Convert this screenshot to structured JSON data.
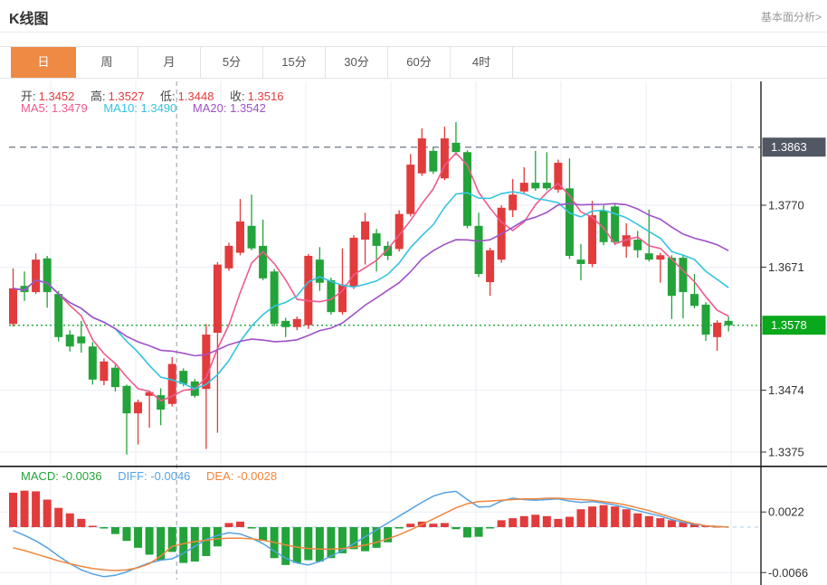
{
  "header": {
    "title": "K线图",
    "link": "基本面分析>"
  },
  "tabs": {
    "items": [
      "日",
      "周",
      "月",
      "5分",
      "15分",
      "30分",
      "60分",
      "4时"
    ],
    "active": "日"
  },
  "ohlc_legend": {
    "open_label": "开:",
    "open_value": "1.3452",
    "high_label": "高:",
    "high_value": "1.3527",
    "low_label": "低:",
    "low_value": "1.3448",
    "close_label": "收:",
    "close_value": "1.3516"
  },
  "ma_legend": {
    "ma5": "MA5: 1.3479",
    "ma10": "MA10: 1.3490",
    "ma20": "MA20: 1.3542"
  },
  "macd_legend": {
    "macd": "MACD: -0.0036",
    "diff": "DIFF: -0.0046",
    "dea": "DEA: -0.0028"
  },
  "price_axis": {
    "tick_labels": [
      "1.3770",
      "1.3671",
      "1.3474",
      "1.3375"
    ],
    "high_badge": "1.3863",
    "current_badge": "1.3578"
  },
  "macd_axis": {
    "tick_labels": [
      "0.0022",
      "-0.0066"
    ]
  },
  "colors": {
    "up": "#e23b3c",
    "down": "#23a33a",
    "ma5": "#ef5a8d",
    "ma10": "#35c3e0",
    "ma20": "#9f52c8",
    "diff_line": "#55a2e3",
    "dea_line": "#f0863c",
    "active_tab": "#ee8a44",
    "high_badge_bg": "#515863",
    "current_badge_bg": "#0aa81d",
    "current_line": "#2fae46",
    "dashed_line": "#858c96",
    "grid": "#e9eef5",
    "axis_line": "#1f1f1f",
    "separator": "#141414",
    "macd_zero": "#a8d2f0",
    "tick_text": "#333333",
    "value_red": "#e23b3c"
  },
  "chart_data": {
    "type": "candlestick",
    "title": "K线图",
    "period": "日",
    "selected_index": 14,
    "selected_ohlc": {
      "open": 1.3452,
      "high": 1.3527,
      "low": 1.3448,
      "close": 1.3516
    },
    "ma_values": {
      "ma5": 1.3479,
      "ma10": 1.349,
      "ma20": 1.3542
    },
    "macd_values": {
      "macd": -0.0036,
      "diff": -0.0046,
      "dea": -0.0028
    },
    "price_ticks": [
      1.377,
      1.3671,
      1.3474,
      1.3375
    ],
    "marked_high": 1.3863,
    "current_price": 1.3578,
    "macd_ticks": [
      0.0022,
      -0.0066
    ],
    "up_means": "close>=open (red)",
    "down_means": "close<open (green)",
    "candles": [
      [
        1.358,
        1.3669,
        1.3576,
        1.3637
      ],
      [
        1.3641,
        1.3664,
        1.3617,
        1.3631
      ],
      [
        1.3631,
        1.3693,
        1.3628,
        1.3683
      ],
      [
        1.3685,
        1.3689,
        1.3606,
        1.3631
      ],
      [
        1.3628,
        1.3633,
        1.3552,
        1.3559
      ],
      [
        1.3563,
        1.357,
        1.3536,
        1.3544
      ],
      [
        1.356,
        1.3585,
        1.3534,
        1.3549
      ],
      [
        1.3544,
        1.3551,
        1.3483,
        1.3491
      ],
      [
        1.3489,
        1.3525,
        1.3482,
        1.352
      ],
      [
        1.351,
        1.3515,
        1.3472,
        1.3479
      ],
      [
        1.3481,
        1.3483,
        1.3371,
        1.3437
      ],
      [
        1.3437,
        1.3459,
        1.3387,
        1.3455
      ],
      [
        1.3465,
        1.3473,
        1.3414,
        1.3471
      ],
      [
        1.3466,
        1.3477,
        1.3418,
        1.3443
      ],
      [
        1.3452,
        1.3527,
        1.3448,
        1.3516
      ],
      [
        1.3505,
        1.3509,
        1.348,
        1.3484
      ],
      [
        1.3488,
        1.3492,
        1.3462,
        1.3465
      ],
      [
        1.3476,
        1.358,
        1.338,
        1.3563
      ],
      [
        1.3566,
        1.3679,
        1.3406,
        1.3675
      ],
      [
        1.3669,
        1.371,
        1.3665,
        1.3705
      ],
      [
        1.3694,
        1.378,
        1.369,
        1.3744
      ],
      [
        1.3737,
        1.3787,
        1.3698,
        1.3701
      ],
      [
        1.3705,
        1.3747,
        1.365,
        1.3653
      ],
      [
        1.3664,
        1.3668,
        1.3576,
        1.358
      ],
      [
        1.3585,
        1.359,
        1.3559,
        1.3575
      ],
      [
        1.3575,
        1.3592,
        1.357,
        1.3588
      ],
      [
        1.3578,
        1.3692,
        1.3572,
        1.3689
      ],
      [
        1.3683,
        1.3703,
        1.3633,
        1.3646
      ],
      [
        1.365,
        1.3654,
        1.3595,
        1.3599
      ],
      [
        1.3599,
        1.3701,
        1.3595,
        1.3643
      ],
      [
        1.364,
        1.3722,
        1.3636,
        1.3718
      ],
      [
        1.3715,
        1.3758,
        1.3675,
        1.3744
      ],
      [
        1.3725,
        1.3732,
        1.3664,
        1.3705
      ],
      [
        1.3705,
        1.3712,
        1.3682,
        1.3689
      ],
      [
        1.37,
        1.3762,
        1.3696,
        1.3756
      ],
      [
        1.3756,
        1.3852,
        1.3752,
        1.3835
      ],
      [
        1.3821,
        1.3893,
        1.3817,
        1.3877
      ],
      [
        1.3857,
        1.3862,
        1.382,
        1.3824
      ],
      [
        1.3813,
        1.3896,
        1.381,
        1.3877
      ],
      [
        1.387,
        1.3903,
        1.385,
        1.3855
      ],
      [
        1.3855,
        1.3858,
        1.3733,
        1.3737
      ],
      [
        1.3737,
        1.3758,
        1.3655,
        1.366
      ],
      [
        1.3647,
        1.3702,
        1.3625,
        1.3698
      ],
      [
        1.3683,
        1.377,
        1.3678,
        1.3766
      ],
      [
        1.3762,
        1.3812,
        1.3751,
        1.3787
      ],
      [
        1.3792,
        1.3831,
        1.3788,
        1.3806
      ],
      [
        1.3806,
        1.3857,
        1.3793,
        1.3797
      ],
      [
        1.3806,
        1.3855,
        1.3794,
        1.3797
      ],
      [
        1.3795,
        1.3843,
        1.379,
        1.3838
      ],
      [
        1.3797,
        1.3845,
        1.3684,
        1.3689
      ],
      [
        1.3683,
        1.3708,
        1.365,
        1.3676
      ],
      [
        1.3676,
        1.3777,
        1.3671,
        1.3754
      ],
      [
        1.3761,
        1.377,
        1.3706,
        1.3711
      ],
      [
        1.3768,
        1.3772,
        1.3706,
        1.3711
      ],
      [
        1.3704,
        1.3741,
        1.3686,
        1.3722
      ],
      [
        1.3715,
        1.3729,
        1.3686,
        1.3698
      ],
      [
        1.3693,
        1.3763,
        1.368,
        1.3683
      ],
      [
        1.3683,
        1.3694,
        1.3646,
        1.369
      ],
      [
        1.3686,
        1.369,
        1.3588,
        1.3625
      ],
      [
        1.3686,
        1.369,
        1.3589,
        1.3631
      ],
      [
        1.3628,
        1.366,
        1.3605,
        1.3609
      ],
      [
        1.3611,
        1.3615,
        1.3553,
        1.3563
      ],
      [
        1.3559,
        1.3586,
        1.3537,
        1.3582
      ],
      [
        1.3585,
        1.3592,
        1.3568,
        1.3578
      ]
    ],
    "macd_hist": [
      0.005,
      0.0053,
      0.0052,
      0.004,
      0.0028,
      0.002,
      0.0012,
      0.0002,
      -0.0002,
      -0.001,
      -0.002,
      -0.003,
      -0.004,
      -0.0048,
      -0.0036,
      -0.0052,
      -0.005,
      -0.0042,
      -0.0028,
      0.0006,
      0.0008,
      -0.0002,
      -0.002,
      -0.0045,
      -0.0055,
      -0.0052,
      -0.0048,
      -0.005,
      -0.0045,
      -0.0038,
      -0.0032,
      -0.0035,
      -0.003,
      -0.0022,
      -0.0002,
      0.0005,
      0.0008,
      0.0005,
      0.0006,
      -0.0003,
      -0.0015,
      -0.0014,
      -0.0002,
      0.001,
      0.0013,
      0.0016,
      0.0018,
      0.0016,
      0.0012,
      0.0015,
      0.0026,
      0.003,
      0.0032,
      0.003,
      0.0026,
      0.002,
      0.0016,
      0.0013,
      0.001,
      0.0007,
      0.0004,
      0.0002,
      0.0001,
      0.0
    ],
    "macd_diff": [
      -0.0005,
      -0.0012,
      -0.002,
      -0.003,
      -0.0042,
      -0.0053,
      -0.0062,
      -0.0068,
      -0.0072,
      -0.007,
      -0.0065,
      -0.0058,
      -0.0052,
      -0.0048,
      -0.0046,
      -0.0038,
      -0.0028,
      -0.0018,
      -0.0012,
      -0.0008,
      -0.001,
      -0.0016,
      -0.0024,
      -0.0035,
      -0.0045,
      -0.0052,
      -0.0055,
      -0.005,
      -0.0042,
      -0.0034,
      -0.0024,
      -0.0014,
      -0.0004,
      0.0006,
      0.0016,
      0.0026,
      0.0036,
      0.0045,
      0.005,
      0.0052,
      0.004,
      0.0029,
      0.003,
      0.0038,
      0.0042,
      0.004,
      0.0039,
      0.004,
      0.0041,
      0.0038,
      0.0036,
      0.0037,
      0.0035,
      0.0032,
      0.0028,
      0.0024,
      0.002,
      0.0016,
      0.0011,
      0.0007,
      0.0004,
      0.0002,
      0.0001,
      0.0
    ],
    "macd_dea": [
      -0.003,
      -0.0034,
      -0.0039,
      -0.0044,
      -0.0049,
      -0.0053,
      -0.0057,
      -0.006,
      -0.0062,
      -0.0063,
      -0.0062,
      -0.0059,
      -0.0053,
      -0.0042,
      -0.0028,
      -0.0024,
      -0.0021,
      -0.0019,
      -0.0017,
      -0.0016,
      -0.0016,
      -0.0017,
      -0.0019,
      -0.0022,
      -0.0026,
      -0.0029,
      -0.0031,
      -0.0032,
      -0.0032,
      -0.0031,
      -0.0029,
      -0.0026,
      -0.0022,
      -0.0017,
      -0.0011,
      -0.0004,
      0.0004,
      0.0012,
      0.002,
      0.0028,
      0.0034,
      0.0037,
      0.0038,
      0.0039,
      0.004,
      0.0041,
      0.0041,
      0.0042,
      0.0042,
      0.0041,
      0.004,
      0.0039,
      0.0037,
      0.0035,
      0.0032,
      0.0028,
      0.0024,
      0.0019,
      0.0014,
      0.0009,
      0.0005,
      0.0002,
      0.0001,
      0.0
    ]
  }
}
